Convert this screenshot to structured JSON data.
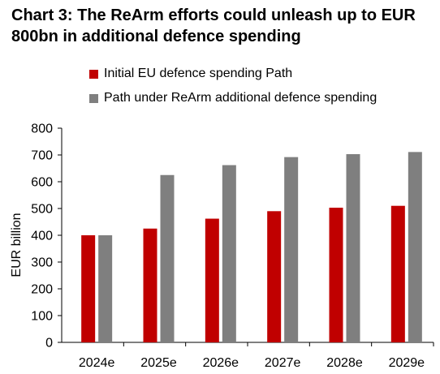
{
  "title": "Chart 3: The ReArm efforts could unleash up to EUR 800bn in additional defence spending",
  "colors": {
    "series_1": "#c00000",
    "series_2": "#7f7f7f",
    "axis": "#000000"
  },
  "chart_data": {
    "type": "bar",
    "title": "Chart 3: The ReArm efforts could unleash up to EUR 800bn in additional defence spending",
    "xlabel": "",
    "ylabel": "EUR billion",
    "ylim": [
      0,
      800
    ],
    "yticks": [
      0,
      100,
      200,
      300,
      400,
      500,
      600,
      700,
      800
    ],
    "categories": [
      "2024e",
      "2025e",
      "2026e",
      "2027e",
      "2028e",
      "2029e"
    ],
    "series": [
      {
        "name": "Initial EU defence spending Path",
        "values": [
          400,
          425,
          462,
          490,
          503,
          510
        ]
      },
      {
        "name": "Path under ReArm additional defence spending",
        "values": [
          400,
          625,
          662,
          692,
          703,
          711
        ]
      }
    ],
    "grid": false,
    "legend_position": "top"
  }
}
